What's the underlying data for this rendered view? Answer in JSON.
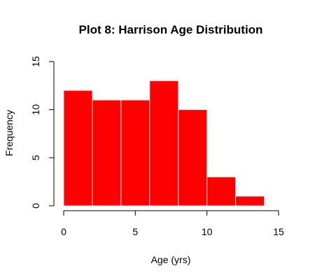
{
  "chart_data": {
    "type": "bar",
    "title": "Plot 8: Harrison Age Distribution",
    "xlabel": "Age (yrs)",
    "ylabel": "Frequency",
    "bins": [
      {
        "from": 0,
        "to": 2,
        "value": 12
      },
      {
        "from": 2,
        "to": 4,
        "value": 11
      },
      {
        "from": 4,
        "to": 6,
        "value": 11
      },
      {
        "from": 6,
        "to": 8,
        "value": 13
      },
      {
        "from": 8,
        "to": 10,
        "value": 10
      },
      {
        "from": 10,
        "to": 12,
        "value": 3
      },
      {
        "from": 12,
        "to": 14,
        "value": 1
      }
    ],
    "xlim": [
      0,
      15
    ],
    "ylim": [
      0,
      15
    ],
    "x_ticks": [
      0,
      5,
      10,
      15
    ],
    "y_ticks": [
      0,
      5,
      10,
      15
    ],
    "x_tick_labels": [
      "0",
      "5",
      "10",
      "15"
    ],
    "y_tick_labels": [
      "0",
      "5",
      "10",
      "15"
    ],
    "bar_color": "#ff0000",
    "bar_border_color": "#d9d9d9",
    "grid": false,
    "legend": "none"
  }
}
